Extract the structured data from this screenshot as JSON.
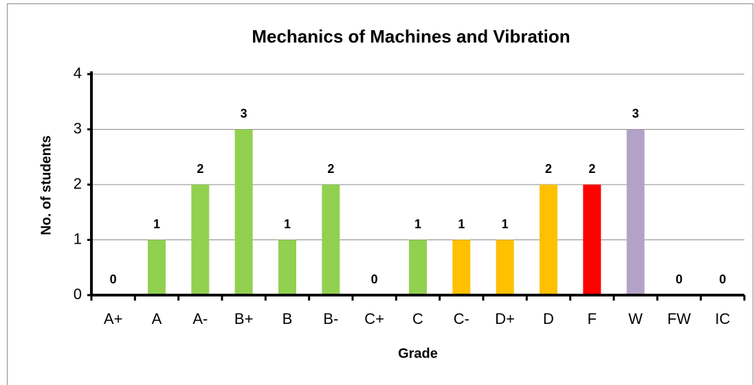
{
  "chart_data": {
    "type": "bar",
    "title": "Mechanics of Machines and Vibration",
    "x_label": "Grade",
    "y_label": "No. of students",
    "categories": [
      "A+",
      "A",
      "A-",
      "B+",
      "B",
      "B-",
      "C+",
      "C",
      "C-",
      "D+",
      "D",
      "F",
      "W",
      "FW",
      "IC"
    ],
    "values": [
      0,
      1,
      2,
      3,
      1,
      2,
      0,
      1,
      1,
      1,
      2,
      2,
      3,
      0,
      0
    ],
    "colors": [
      "#92d050",
      "#92d050",
      "#92d050",
      "#92d050",
      "#92d050",
      "#92d050",
      "#92d050",
      "#92d050",
      "#ffc000",
      "#ffc000",
      "#ffc000",
      "#ff0000",
      "#b3a2c7",
      "#b3a2c7",
      "#b3a2c7"
    ],
    "ylim": [
      0,
      4
    ],
    "yticks": [
      0,
      1,
      2,
      3,
      4
    ],
    "grid": true
  }
}
